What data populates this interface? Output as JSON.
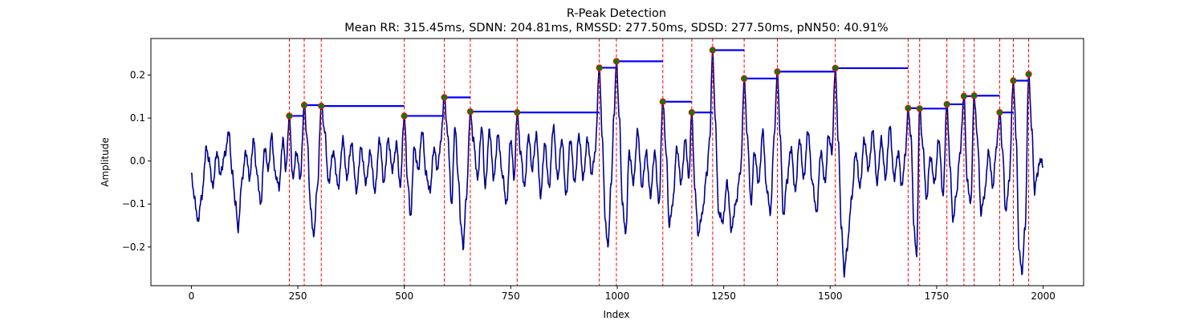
{
  "chart_data": {
    "type": "line",
    "title": "R-Peak Detection",
    "subtitle": "Mean RR: 315.45ms, SDNN: 204.81ms, RMSSD: 277.50ms, SDSD: 277.50ms, pNN50: 40.91%",
    "xlabel": "Index",
    "ylabel": "Amplitude",
    "xlim": [
      -95,
      2095
    ],
    "ylim": [
      -0.29,
      0.285
    ],
    "xticks": [
      0,
      250,
      500,
      750,
      1000,
      1250,
      1500,
      1750,
      2000
    ],
    "xtick_labels": [
      "0",
      "250",
      "500",
      "750",
      "1000",
      "1250",
      "1500",
      "1750",
      "2000"
    ],
    "yticks": [
      -0.2,
      -0.1,
      0.0,
      0.1,
      0.2
    ],
    "ytick_labels": [
      "−0.2",
      "−0.1",
      "0.0",
      "0.1",
      "0.2"
    ],
    "grid": false,
    "colors": {
      "signal": "#00008b",
      "peak_line": "#ff0000",
      "rr_segment": "#0000ff",
      "peak_marker_fill": "#008000",
      "peak_marker_edge": "#ff0000"
    },
    "signal_keypoints": [
      [
        0,
        -0.035
      ],
      [
        8,
        -0.09
      ],
      [
        15,
        -0.14
      ],
      [
        25,
        -0.08
      ],
      [
        35,
        0.03
      ],
      [
        42,
        0.0
      ],
      [
        50,
        -0.06
      ],
      [
        60,
        0.02
      ],
      [
        68,
        -0.03
      ],
      [
        80,
        0.02
      ],
      [
        88,
        0.07
      ],
      [
        95,
        -0.02
      ],
      [
        104,
        -0.1
      ],
      [
        110,
        -0.16
      ],
      [
        118,
        -0.05
      ],
      [
        128,
        0.02
      ],
      [
        137,
        -0.04
      ],
      [
        146,
        0.05
      ],
      [
        154,
        -0.03
      ],
      [
        163,
        -0.1
      ],
      [
        172,
        0.03
      ],
      [
        181,
        -0.02
      ],
      [
        188,
        0.06
      ],
      [
        197,
        -0.03
      ],
      [
        206,
        -0.06
      ],
      [
        215,
        0.05
      ],
      [
        222,
        -0.02
      ],
      [
        230,
        0.105
      ],
      [
        238,
        -0.04
      ],
      [
        247,
        0.02
      ],
      [
        256,
        -0.04
      ],
      [
        265,
        0.13
      ],
      [
        272,
        0.05
      ],
      [
        280,
        -0.11
      ],
      [
        287,
        -0.175
      ],
      [
        296,
        -0.06
      ],
      [
        305,
        0.128
      ],
      [
        313,
        0.07
      ],
      [
        322,
        -0.05
      ],
      [
        333,
        0.02
      ],
      [
        345,
        -0.06
      ],
      [
        356,
        0.05
      ],
      [
        365,
        -0.04
      ],
      [
        376,
        0.04
      ],
      [
        388,
        -0.07
      ],
      [
        398,
        0.03
      ],
      [
        410,
        -0.05
      ],
      [
        420,
        0.02
      ],
      [
        431,
        -0.07
      ],
      [
        442,
        0.05
      ],
      [
        452,
        -0.05
      ],
      [
        462,
        0.05
      ],
      [
        472,
        -0.02
      ],
      [
        482,
        0.04
      ],
      [
        490,
        -0.06
      ],
      [
        500,
        0.105
      ],
      [
        508,
        -0.05
      ],
      [
        515,
        -0.13
      ],
      [
        523,
        0.03
      ],
      [
        533,
        -0.02
      ],
      [
        542,
        0.07
      ],
      [
        551,
        -0.03
      ],
      [
        560,
        -0.07
      ],
      [
        570,
        0.03
      ],
      [
        578,
        -0.02
      ],
      [
        585,
        0.04
      ],
      [
        594,
        0.148
      ],
      [
        602,
        0.06
      ],
      [
        611,
        -0.1
      ],
      [
        619,
        0.08
      ],
      [
        627,
        -0.04
      ],
      [
        633,
        -0.15
      ],
      [
        638,
        -0.2
      ],
      [
        646,
        -0.08
      ],
      [
        655,
        0.115
      ],
      [
        662,
        0.05
      ],
      [
        672,
        -0.04
      ],
      [
        682,
        0.08
      ],
      [
        690,
        -0.06
      ],
      [
        700,
        0.07
      ],
      [
        710,
        -0.04
      ],
      [
        720,
        0.06
      ],
      [
        730,
        -0.03
      ],
      [
        740,
        -0.1
      ],
      [
        750,
        0.05
      ],
      [
        758,
        -0.04
      ],
      [
        765,
        0.113
      ],
      [
        773,
        0.02
      ],
      [
        782,
        -0.06
      ],
      [
        792,
        0.06
      ],
      [
        800,
        -0.02
      ],
      [
        810,
        0.06
      ],
      [
        820,
        -0.08
      ],
      [
        830,
        0.04
      ],
      [
        840,
        -0.06
      ],
      [
        850,
        0.08
      ],
      [
        860,
        -0.04
      ],
      [
        870,
        0.05
      ],
      [
        880,
        -0.08
      ],
      [
        890,
        0.05
      ],
      [
        900,
        -0.05
      ],
      [
        910,
        0.06
      ],
      [
        920,
        -0.04
      ],
      [
        930,
        0.05
      ],
      [
        940,
        -0.03
      ],
      [
        948,
        0.02
      ],
      [
        958,
        0.217
      ],
      [
        965,
        0.05
      ],
      [
        972,
        -0.14
      ],
      [
        978,
        -0.2
      ],
      [
        986,
        -0.05
      ],
      [
        992,
        0.1
      ],
      [
        998,
        0.232
      ],
      [
        1005,
        0.1
      ],
      [
        1012,
        -0.1
      ],
      [
        1020,
        -0.17
      ],
      [
        1028,
        0.02
      ],
      [
        1038,
        -0.05
      ],
      [
        1048,
        0.07
      ],
      [
        1058,
        -0.06
      ],
      [
        1068,
        0.02
      ],
      [
        1078,
        -0.08
      ],
      [
        1088,
        0.02
      ],
      [
        1098,
        -0.1
      ],
      [
        1107,
        0.138
      ],
      [
        1115,
        0.02
      ],
      [
        1122,
        -0.15
      ],
      [
        1130,
        -0.1
      ],
      [
        1140,
        0.03
      ],
      [
        1150,
        -0.05
      ],
      [
        1160,
        0.05
      ],
      [
        1168,
        -0.04
      ],
      [
        1175,
        0.113
      ],
      [
        1182,
        -0.06
      ],
      [
        1190,
        -0.17
      ],
      [
        1200,
        -0.12
      ],
      [
        1210,
        -0.03
      ],
      [
        1217,
        0.05
      ],
      [
        1224,
        0.258
      ],
      [
        1230,
        0.1
      ],
      [
        1238,
        -0.12
      ],
      [
        1248,
        -0.14
      ],
      [
        1258,
        -0.05
      ],
      [
        1268,
        -0.16
      ],
      [
        1278,
        -0.1
      ],
      [
        1290,
        -0.02
      ],
      [
        1298,
        0.192
      ],
      [
        1306,
        0.05
      ],
      [
        1314,
        -0.1
      ],
      [
        1322,
        0.02
      ],
      [
        1332,
        -0.05
      ],
      [
        1342,
        0.07
      ],
      [
        1350,
        -0.06
      ],
      [
        1360,
        -0.12
      ],
      [
        1368,
        0.05
      ],
      [
        1376,
        0.208
      ],
      [
        1383,
        0.05
      ],
      [
        1390,
        -0.13
      ],
      [
        1398,
        -0.05
      ],
      [
        1408,
        0.03
      ],
      [
        1418,
        -0.07
      ],
      [
        1428,
        0.05
      ],
      [
        1438,
        -0.04
      ],
      [
        1448,
        0.07
      ],
      [
        1458,
        -0.05
      ],
      [
        1468,
        -0.12
      ],
      [
        1478,
        0.02
      ],
      [
        1488,
        -0.05
      ],
      [
        1496,
        0.06
      ],
      [
        1504,
        0.02
      ],
      [
        1512,
        0.216
      ],
      [
        1519,
        0.05
      ],
      [
        1526,
        -0.15
      ],
      [
        1533,
        -0.26
      ],
      [
        1540,
        -0.2
      ],
      [
        1550,
        -0.09
      ],
      [
        1560,
        0.02
      ],
      [
        1570,
        -0.06
      ],
      [
        1580,
        0.05
      ],
      [
        1590,
        -0.02
      ],
      [
        1600,
        0.07
      ],
      [
        1610,
        -0.05
      ],
      [
        1620,
        0.05
      ],
      [
        1630,
        -0.04
      ],
      [
        1640,
        0.08
      ],
      [
        1650,
        -0.04
      ],
      [
        1660,
        0.02
      ],
      [
        1668,
        -0.06
      ],
      [
        1676,
        0.01
      ],
      [
        1683,
        0.123
      ],
      [
        1690,
        0.05
      ],
      [
        1697,
        -0.16
      ],
      [
        1703,
        -0.22
      ],
      [
        1710,
        0.122
      ],
      [
        1718,
        0.03
      ],
      [
        1726,
        -0.09
      ],
      [
        1735,
        0.01
      ],
      [
        1745,
        -0.05
      ],
      [
        1755,
        0.05
      ],
      [
        1765,
        -0.08
      ],
      [
        1774,
        0.132
      ],
      [
        1782,
        -0.02
      ],
      [
        1788,
        -0.14
      ],
      [
        1796,
        -0.08
      ],
      [
        1805,
        0.02
      ],
      [
        1814,
        0.151
      ],
      [
        1822,
        -0.05
      ],
      [
        1830,
        -0.1
      ],
      [
        1838,
        0.152
      ],
      [
        1846,
        0.05
      ],
      [
        1854,
        -0.12
      ],
      [
        1862,
        -0.08
      ],
      [
        1872,
        0.02
      ],
      [
        1882,
        -0.06
      ],
      [
        1890,
        0.03
      ],
      [
        1898,
        0.113
      ],
      [
        1905,
        0.02
      ],
      [
        1912,
        -0.12
      ],
      [
        1920,
        -0.05
      ],
      [
        1930,
        0.187
      ],
      [
        1937,
        0.05
      ],
      [
        1943,
        -0.2
      ],
      [
        1950,
        -0.26
      ],
      [
        1958,
        -0.15
      ],
      [
        1966,
        0.202
      ],
      [
        1973,
        0.08
      ],
      [
        1980,
        -0.07
      ],
      [
        1986,
        -0.03
      ],
      [
        1994,
        0.005
      ],
      [
        1999,
        -0.01
      ]
    ],
    "peaks": [
      {
        "x": 230,
        "y": 0.105
      },
      {
        "x": 265,
        "y": 0.13
      },
      {
        "x": 305,
        "y": 0.128
      },
      {
        "x": 500,
        "y": 0.105
      },
      {
        "x": 594,
        "y": 0.148
      },
      {
        "x": 655,
        "y": 0.115
      },
      {
        "x": 765,
        "y": 0.113
      },
      {
        "x": 958,
        "y": 0.217
      },
      {
        "x": 998,
        "y": 0.232
      },
      {
        "x": 1107,
        "y": 0.138
      },
      {
        "x": 1175,
        "y": 0.113
      },
      {
        "x": 1224,
        "y": 0.258
      },
      {
        "x": 1298,
        "y": 0.192
      },
      {
        "x": 1376,
        "y": 0.208
      },
      {
        "x": 1512,
        "y": 0.216
      },
      {
        "x": 1683,
        "y": 0.123
      },
      {
        "x": 1710,
        "y": 0.122
      },
      {
        "x": 1774,
        "y": 0.132
      },
      {
        "x": 1814,
        "y": 0.151
      },
      {
        "x": 1838,
        "y": 0.152
      },
      {
        "x": 1898,
        "y": 0.113
      },
      {
        "x": 1930,
        "y": 0.187
      },
      {
        "x": 1966,
        "y": 0.202
      }
    ]
  }
}
